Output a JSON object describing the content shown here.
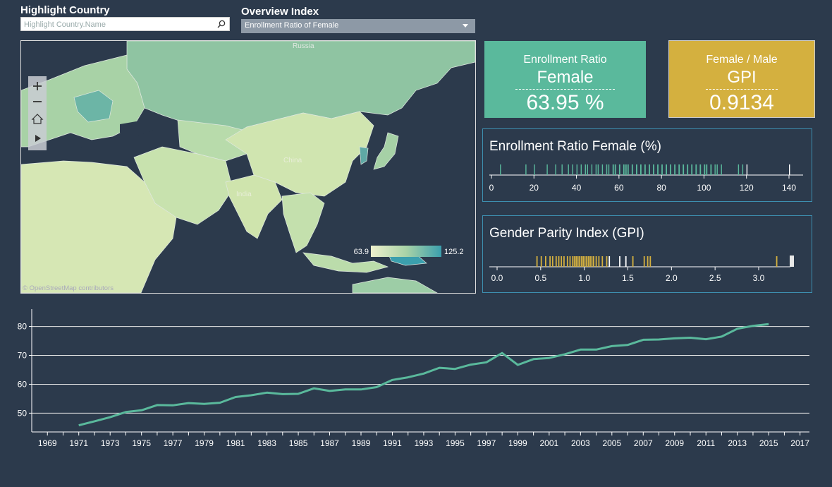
{
  "filters": {
    "highlight_label": "Highlight Country",
    "highlight_placeholder": "Highlight Country.Name",
    "overview_label": "Overview Index",
    "overview_value": "Enrollment Ratio of Female"
  },
  "map": {
    "labels": [
      "Russia",
      "China",
      "India"
    ],
    "legend_min": "63.9",
    "legend_max": "125.2",
    "attribution": "© OpenStreetMap contributors",
    "controls": [
      "zoom-in",
      "zoom-out",
      "home",
      "play"
    ]
  },
  "kpi_female": {
    "line1": "Enrollment Ratio",
    "line2": "Female",
    "value": "63.95 %",
    "color": "#5ab99c"
  },
  "kpi_gpi": {
    "line1": "Female / Male",
    "line2": "GPI",
    "value": "0.9134",
    "color": "#d4b03f"
  },
  "enrollment_panel": {
    "title": "Enrollment Ratio Female (%)",
    "ticks": [
      "0",
      "20",
      "40",
      "60",
      "80",
      "100",
      "120",
      "140"
    ],
    "color": "#5ab99c"
  },
  "gpi_panel": {
    "title": "Gender Parity Index (GPI)",
    "ticks": [
      "0.0",
      "0.5",
      "1.0",
      "1.5",
      "2.0",
      "2.5",
      "3.0"
    ],
    "color": "#d4b03f"
  },
  "chart_data": {
    "type": "line",
    "x": [
      1971,
      1972,
      1973,
      1974,
      1975,
      1976,
      1977,
      1978,
      1979,
      1980,
      1981,
      1982,
      1983,
      1984,
      1985,
      1986,
      1987,
      1988,
      1989,
      1990,
      1991,
      1992,
      1993,
      1994,
      1995,
      1996,
      1997,
      1998,
      1999,
      2000,
      2001,
      2002,
      2003,
      2004,
      2005,
      2006,
      2007,
      2008,
      2009,
      2010,
      2011,
      2012,
      2013,
      2014,
      2015
    ],
    "values": [
      45.8,
      47.2,
      48.6,
      50.4,
      51.0,
      52.8,
      52.7,
      53.5,
      53.2,
      53.6,
      55.6,
      56.2,
      57.1,
      56.6,
      56.7,
      58.6,
      57.7,
      58.2,
      58.2,
      59.0,
      61.5,
      62.4,
      63.7,
      65.7,
      65.3,
      66.8,
      67.6,
      70.8,
      66.7,
      68.7,
      69.1,
      70.4,
      72.0,
      72.0,
      73.2,
      73.6,
      75.4,
      75.5,
      75.9,
      76.1,
      75.6,
      76.5,
      79.2,
      80.2,
      80.8
    ],
    "xlim": [
      1968,
      2017.6
    ],
    "ylim": [
      43.5,
      86
    ],
    "y_ticks": [
      50,
      60,
      70,
      80
    ],
    "x_ticks": [
      1969,
      1971,
      1973,
      1975,
      1977,
      1979,
      1981,
      1983,
      1985,
      1987,
      1989,
      1991,
      1993,
      1995,
      1997,
      1999,
      2001,
      2003,
      2005,
      2007,
      2009,
      2011,
      2013,
      2015,
      2017
    ],
    "grid": true,
    "line_color": "#5ab99c",
    "title": "",
    "xlabel": "",
    "ylabel": ""
  }
}
